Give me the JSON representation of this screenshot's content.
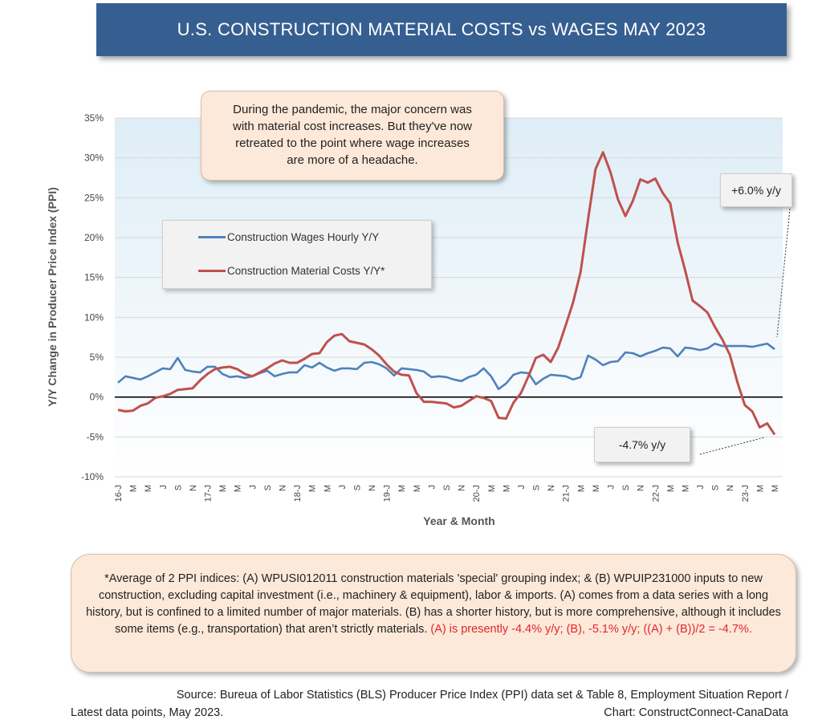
{
  "title": "U.S. CONSTRUCTION MATERIAL COSTS vs WAGES  MAY 2023",
  "callout_top": {
    "lines": [
      "During the pandemic, the major concern was",
      "with material cost increases. But they've now",
      "retreated to the point where wage increases",
      "are more of a headache."
    ]
  },
  "wage_label": "+6.0% y/y",
  "material_label": "-4.7% y/y",
  "footnote": {
    "text": "*Average of 2 PPI indices: (A) WPUSI012011 construction materials 'special' grouping index; & (B) WPUIP231000 inputs to new construction, excluding capital investment (i.e., machinery & equipment), labor & imports. (A) comes from a data series with a long history, but is confined to a limited number of major materials. (B) has a shorter history, but is more comprehensive, although it includes some items (e.g., transportation) that aren’t strictly materials. ",
    "red_text": "(A) is presently -4.4% y/y; (B), -5.1% y/y; ((A) + (B))/2 = -4.7%."
  },
  "source": {
    "line1": "Source: Bureua of Labor Statistics (BLS) Producer Price Index (PPI) data set & Table 8, Employment Situation Report /",
    "line2_left": "Latest data points, May 2023.",
    "line2_right": "Chart: ConstructConnect-CanaData"
  },
  "colors": {
    "wages": "#4f81bd",
    "materials": "#c0504d",
    "banner": "#365f91",
    "callout_bg": "#fde9d9"
  },
  "chart_data": {
    "type": "line",
    "xlabel": "Year & Month",
    "ylabel": "Y/Y Change in Producer Price Index (PPI)",
    "ylim": [
      -10,
      35
    ],
    "yticks": [
      "-10%",
      "-5%",
      "0%",
      "5%",
      "10%",
      "15%",
      "20%",
      "25%",
      "30%",
      "35%"
    ],
    "x_tick_labels": [
      "16-J",
      "M",
      "M",
      "J",
      "S",
      "N",
      "17-J",
      "M",
      "M",
      "J",
      "S",
      "N",
      "18-J",
      "M",
      "M",
      "J",
      "S",
      "N",
      "19-J",
      "M",
      "M",
      "J",
      "S",
      "N",
      "20-J",
      "M",
      "M",
      "J",
      "S",
      "N",
      "21-J",
      "M",
      "M",
      "J",
      "S",
      "N",
      "22-J",
      "M",
      "M",
      "J",
      "S",
      "N",
      "23-J",
      "M",
      "M"
    ],
    "legend": [
      "Construction Wages Hourly Y/Y",
      "Construction Material Costs Y/Y*"
    ],
    "series": [
      {
        "name": "Construction Wages Hourly Y/Y",
        "values": [
          1.8,
          2.6,
          2.4,
          2.2,
          2.6,
          3.1,
          3.6,
          3.5,
          4.9,
          3.4,
          3.2,
          3.1,
          3.8,
          3.8,
          2.9,
          2.5,
          2.6,
          2.4,
          2.6,
          3.0,
          3.3,
          2.6,
          2.9,
          3.1,
          3.1,
          4.0,
          3.7,
          4.3,
          3.7,
          3.3,
          3.6,
          3.6,
          3.5,
          4.3,
          4.4,
          4.1,
          3.6,
          2.7,
          3.6,
          3.5,
          3.4,
          3.2,
          2.5,
          2.6,
          2.5,
          2.2,
          2.0,
          2.5,
          2.8,
          3.6,
          2.6,
          1.0,
          1.7,
          2.8,
          3.1,
          3.0,
          1.6,
          2.3,
          2.8,
          2.7,
          2.6,
          2.2,
          2.5,
          5.2,
          4.7,
          4.0,
          4.4,
          4.5,
          5.6,
          5.5,
          5.1,
          5.5,
          5.8,
          6.2,
          6.1,
          5.1,
          6.2,
          6.1,
          5.9,
          6.1,
          6.7,
          6.4,
          6.4,
          6.4,
          6.4,
          6.3,
          6.5,
          6.7,
          6.0
        ]
      },
      {
        "name": "Construction Material Costs Y/Y*",
        "values": [
          -1.6,
          -1.8,
          -1.7,
          -1.1,
          -0.8,
          -0.1,
          0.1,
          0.4,
          0.9,
          1.0,
          1.1,
          2.1,
          2.9,
          3.5,
          3.7,
          3.8,
          3.5,
          2.9,
          2.6,
          3.1,
          3.6,
          4.2,
          4.6,
          4.3,
          4.3,
          4.8,
          5.4,
          5.5,
          6.9,
          7.7,
          7.9,
          7.0,
          6.8,
          6.6,
          6.0,
          5.2,
          4.1,
          3.2,
          2.8,
          2.7,
          0.5,
          -0.6,
          -0.6,
          -0.7,
          -0.8,
          -1.3,
          -1.1,
          -0.5,
          0.1,
          -0.1,
          -0.5,
          -2.6,
          -2.7,
          -0.7,
          0.5,
          2.6,
          4.9,
          5.3,
          4.4,
          6.2,
          9.0,
          11.9,
          15.7,
          22.3,
          28.6,
          30.7,
          28.2,
          24.8,
          22.7,
          24.6,
          27.3,
          26.9,
          27.4,
          25.6,
          24.3,
          19.4,
          15.9,
          12.1,
          11.4,
          10.6,
          8.8,
          7.2,
          5.3,
          1.9,
          -1.0,
          -1.8,
          -3.8,
          -3.3,
          -4.7
        ]
      }
    ]
  }
}
